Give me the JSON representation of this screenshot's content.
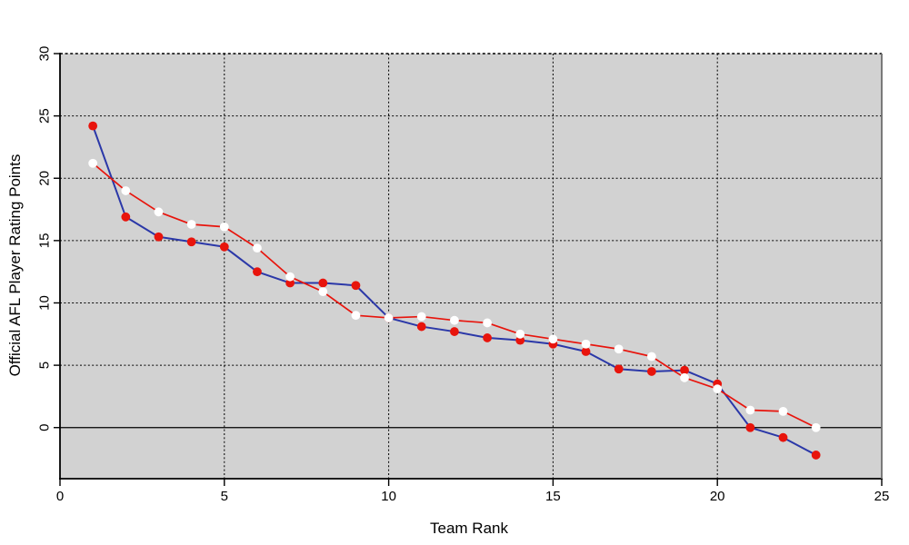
{
  "chart_data": {
    "type": "line",
    "title": "",
    "xlabel": "Team Rank",
    "ylabel": "Official AFL Player Rating Points",
    "xlim": [
      0,
      25
    ],
    "ylim": [
      -4.1,
      30
    ],
    "xticks": [
      0,
      5,
      10,
      15,
      20,
      25
    ],
    "yticks": [
      0,
      5,
      10,
      15,
      20,
      25,
      30
    ],
    "grid": "dotted black, vertical at 5/10/15/20, horizontal every 5; solid black line at y=0",
    "legend_position": "none",
    "x": [
      1,
      2,
      3,
      4,
      5,
      6,
      7,
      8,
      9,
      10,
      11,
      12,
      13,
      14,
      15,
      16,
      17,
      18,
      19,
      20,
      21,
      22,
      23
    ],
    "series": [
      {
        "name": "blue-line-red-markers",
        "line_color": "#2b38a8",
        "marker_color": "#e8140c",
        "values": [
          24.2,
          16.9,
          15.3,
          14.9,
          14.5,
          12.5,
          11.6,
          11.6,
          11.4,
          8.8,
          8.1,
          7.7,
          7.2,
          7.0,
          6.7,
          6.1,
          4.7,
          4.5,
          4.6,
          3.5,
          0.0,
          -0.8,
          -2.2
        ]
      },
      {
        "name": "red-line-white-markers",
        "line_color": "#e8140c",
        "marker_color": "#ffffff",
        "values": [
          21.2,
          19.0,
          17.3,
          16.3,
          16.1,
          14.4,
          12.1,
          10.9,
          9.0,
          8.8,
          8.9,
          8.6,
          8.4,
          7.5,
          7.1,
          6.7,
          6.3,
          5.7,
          4.0,
          3.1,
          1.4,
          1.3,
          0.0
        ]
      }
    ],
    "colors": {
      "plot_background": "#d2d2d2",
      "outer_background": "#ffffff",
      "grid_line": "#000000",
      "zero_line": "#000000",
      "right_border": "#6e6e6e"
    }
  }
}
